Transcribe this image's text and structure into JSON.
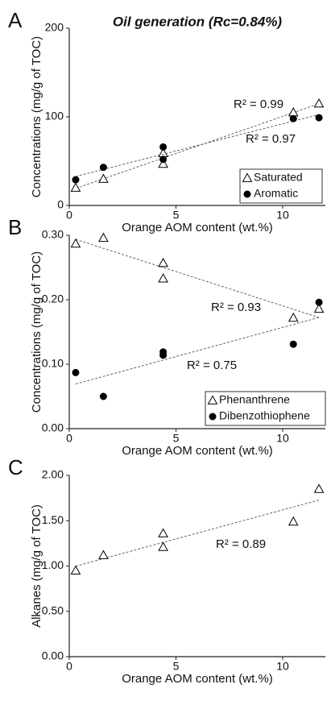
{
  "chart_data": [
    {
      "type": "scatter",
      "panel": "A",
      "title": "Oil generation (Rc=0.84%)",
      "xlabel": "Orange AOM content (wt.%)",
      "ylabel": "Concentrations (mg/g of TOC)",
      "xlim": [
        0,
        12
      ],
      "xticks": [
        0,
        5,
        10
      ],
      "ylim": [
        0,
        200
      ],
      "yticks": [
        0,
        100,
        200
      ],
      "trendline": true,
      "annotations": [
        "R² = 0.99",
        "R² = 0.97"
      ],
      "series": [
        {
          "name": "Saturated",
          "marker": "triangle",
          "color": "#000000",
          "x": [
            0.3,
            1.6,
            4.4,
            4.4,
            10.5,
            11.7
          ],
          "values": [
            20,
            30,
            47,
            59,
            105,
            115
          ]
        },
        {
          "name": "Aromatic",
          "marker": "circle",
          "color": "#000000",
          "x": [
            0.3,
            1.6,
            4.4,
            4.4,
            10.5,
            11.7
          ],
          "values": [
            29,
            43,
            52,
            66,
            98,
            99
          ]
        }
      ]
    },
    {
      "type": "scatter",
      "panel": "B",
      "xlabel": "Orange AOM content (wt.%)",
      "ylabel": "Concentrations (mg/g of TOC)",
      "xlim": [
        0,
        12
      ],
      "xticks": [
        0,
        5,
        10
      ],
      "ylim": [
        0,
        0.3
      ],
      "yticks": [
        {
          "value": 0,
          "label": "0.00"
        },
        {
          "value": 0.1,
          "label": "0.10"
        },
        {
          "value": 0.2,
          "label": "0.20"
        },
        {
          "value": 0.3,
          "label": "0.30"
        }
      ],
      "trendline": true,
      "annotations": [
        "R² = 0.93",
        "R² = 0.75"
      ],
      "series": [
        {
          "name": "Phenanthrene",
          "marker": "triangle",
          "color": "#000000",
          "x": [
            0.3,
            1.6,
            4.4,
            4.4,
            10.5,
            11.7
          ],
          "values": [
            0.287,
            0.296,
            0.257,
            0.233,
            0.172,
            0.186
          ]
        },
        {
          "name": "Dibenzothiophene",
          "marker": "circle",
          "color": "#000000",
          "x": [
            0.3,
            1.6,
            4.4,
            4.4,
            10.5,
            11.7
          ],
          "values": [
            0.087,
            0.05,
            0.119,
            0.114,
            0.131,
            0.196
          ]
        }
      ]
    },
    {
      "type": "scatter",
      "panel": "C",
      "xlabel": "Orange AOM content (wt.%)",
      "ylabel": "Alkanes (mg/g of TOC)",
      "xlim": [
        0,
        12
      ],
      "xticks": [
        0,
        5,
        10
      ],
      "ylim": [
        0,
        2
      ],
      "yticks": [
        {
          "value": 0,
          "label": "0.00"
        },
        {
          "value": 0.5,
          "label": "0.50"
        },
        {
          "value": 1,
          "label": "1.00"
        },
        {
          "value": 1.5,
          "label": "1.50"
        },
        {
          "value": 2,
          "label": "2.00"
        }
      ],
      "trendline": true,
      "annotations": [
        "R² = 0.89"
      ],
      "series": [
        {
          "marker": "triangle",
          "color": "#000000",
          "x": [
            0.3,
            1.6,
            4.4,
            4.4,
            10.5,
            11.7
          ],
          "values": [
            0.95,
            1.12,
            1.36,
            1.21,
            1.49,
            1.85
          ]
        }
      ]
    }
  ]
}
